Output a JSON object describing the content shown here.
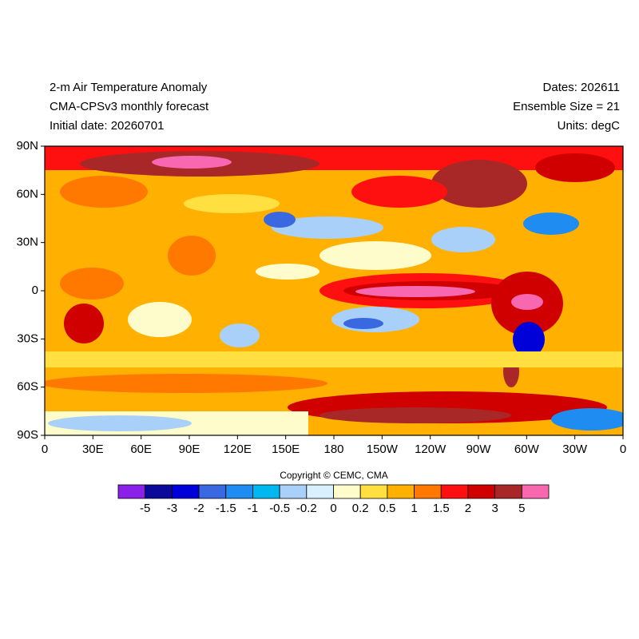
{
  "header": {
    "left": [
      "2-m Air Temperature Anomaly",
      "CMA-CPSv3 monthly forecast",
      "Initial date: 20260701"
    ],
    "right": [
      "Dates: 202611",
      "Ensemble Size = 21",
      "Units: degC"
    ]
  },
  "map": {
    "x_labels": [
      "0",
      "30E",
      "60E",
      "90E",
      "120E",
      "150E",
      "180",
      "150W",
      "120W",
      "90W",
      "60W",
      "30W",
      "0"
    ],
    "y_labels": [
      "90N",
      "60N",
      "30N",
      "0",
      "30S",
      "60S",
      "90S"
    ]
  },
  "copyright": "Copyright © CEMC, CMA",
  "colorbar": {
    "levels": [
      -5,
      -3,
      -2,
      -1.5,
      -1,
      -0.5,
      -0.2,
      0,
      0.2,
      0.5,
      1,
      1.5,
      2,
      3,
      5
    ],
    "colors": [
      "#8b20e8",
      "#0a0a9a",
      "#0000d8",
      "#3a68e0",
      "#1e8cf0",
      "#00b8f0",
      "#a8d0f8",
      "#d8f0ff",
      "#fffccc",
      "#ffe040",
      "#ffb000",
      "#ff7800",
      "#ff1010",
      "#d00000",
      "#a82828",
      "#f868b0"
    ]
  }
}
